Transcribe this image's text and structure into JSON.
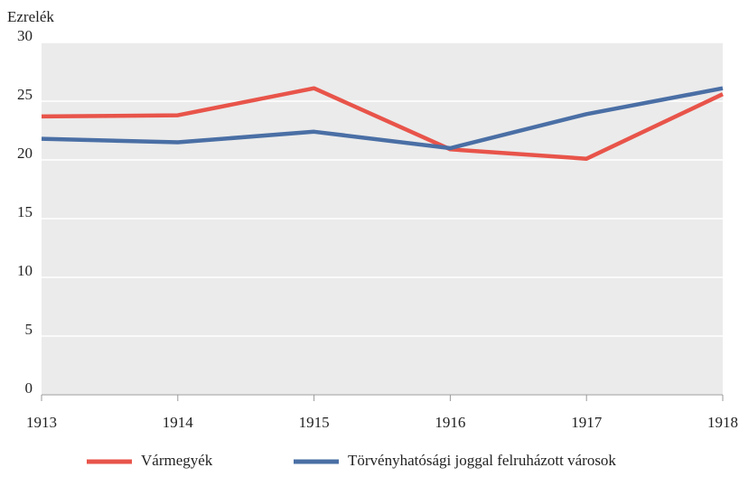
{
  "chart_data": {
    "type": "line",
    "y_axis_label": "Ezrelék",
    "categories": [
      "1913",
      "1914",
      "1915",
      "1916",
      "1917",
      "1918"
    ],
    "series": [
      {
        "name": "Vármegyék",
        "color": "#e8544a",
        "values": [
          23.7,
          23.8,
          26.1,
          20.9,
          20.1,
          25.6
        ]
      },
      {
        "name": "Törvényhatósági joggal felruházott városok",
        "color": "#4a6fa5",
        "values": [
          21.8,
          21.5,
          22.4,
          21.0,
          23.9,
          26.1
        ]
      }
    ],
    "ylim": [
      0,
      30
    ],
    "yticks": [
      0,
      5,
      10,
      15,
      20,
      25,
      30
    ],
    "grid": true,
    "legend": "bottom"
  }
}
